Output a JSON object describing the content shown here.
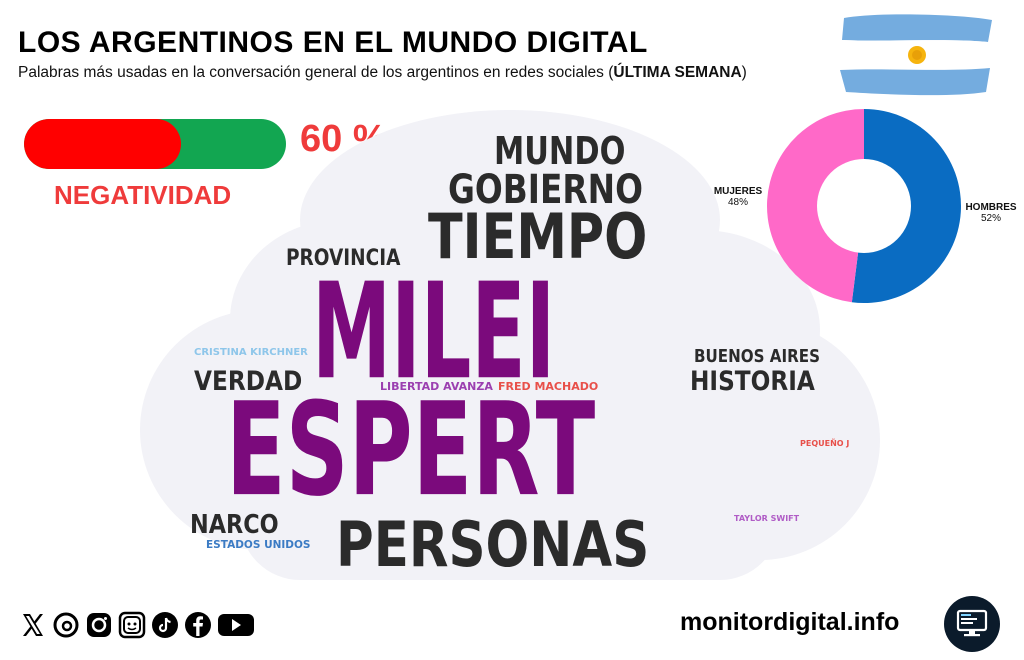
{
  "header": {
    "title": "LOS ARGENTINOS EN EL MUNDO DIGITAL",
    "subtitle_prefix": "Palabras más usadas en la conversación general de los argentinos en redes sociales (",
    "subtitle_bold": "ÚLTIMA SEMANA",
    "subtitle_suffix": ")"
  },
  "negativity": {
    "value": 0.6,
    "percent_text": "60 %",
    "label": "NEGATIVIDAD",
    "colors": {
      "negative": "#ff0000",
      "positive": "#12a651",
      "text": "#ef3b3b"
    }
  },
  "word_cloud": {
    "words": [
      {
        "text": "MILEI",
        "color": "#7b0a7c"
      },
      {
        "text": "ESPERT",
        "color": "#7b0a7c"
      },
      {
        "text": "PERSONAS",
        "color": "#2b2b2b"
      },
      {
        "text": "TIEMPO",
        "color": "#2b2b2b"
      },
      {
        "text": "GOBIERNO",
        "color": "#2b2b2b"
      },
      {
        "text": "MUNDO",
        "color": "#2b2b2b"
      },
      {
        "text": "HISTORIA",
        "color": "#2b2b2b"
      },
      {
        "text": "VERDAD",
        "color": "#2b2b2b"
      },
      {
        "text": "PROVINCIA",
        "color": "#2b2b2b"
      },
      {
        "text": "BUENOS AIRES",
        "color": "#2b2b2b"
      },
      {
        "text": "NARCO",
        "color": "#2b2b2b"
      },
      {
        "text": "LIBERTAD AVANZA",
        "color": "#9b3fb0"
      },
      {
        "text": "FRED MACHADO",
        "color": "#e8504a"
      },
      {
        "text": "CRISTINA KIRCHNER",
        "color": "#8ec6ea"
      },
      {
        "text": "ESTADOS UNIDOS",
        "color": "#3b7bc4"
      },
      {
        "text": "TAYLOR SWIFT",
        "color": "#b05cc6"
      },
      {
        "text": "PEQUEÑO J",
        "color": "#e8504a"
      }
    ]
  },
  "gender_chart": {
    "chart_data": {
      "type": "pie",
      "categories": [
        "HOMBRES",
        "MUJERES"
      ],
      "values": [
        52,
        48
      ],
      "labels": [
        "52%",
        "48%"
      ],
      "colors": [
        "#0a6cc2",
        "#ff69c8"
      ]
    }
  },
  "footer": {
    "social_icons": [
      "x-icon",
      "threads-icon",
      "instagram-icon",
      "lemon8-icon",
      "tiktok-icon",
      "facebook-icon",
      "youtube-icon"
    ],
    "site": "monitordigital.info"
  }
}
